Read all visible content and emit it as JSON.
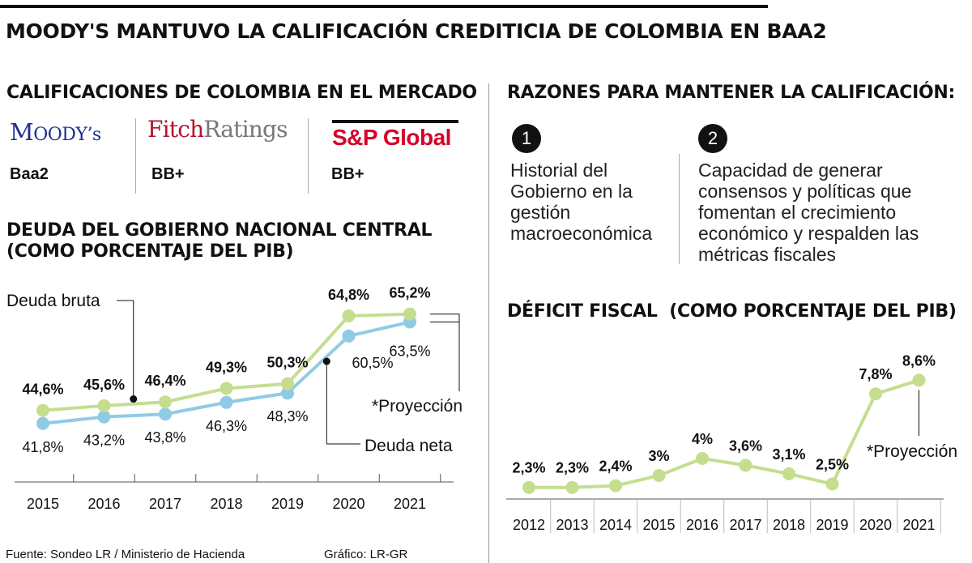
{
  "headline": "MOODY'S MANTUVO LA CALIFICACIÓN CREDITICIA DE COLOMBIA EN BAA2",
  "ratings": {
    "title": "CALIFICACIONES DE COLOMBIA EN EL MERCADO",
    "agencies": [
      {
        "logo_name": "Moody's",
        "logo_text": "Moody's",
        "rating": "Baa2",
        "color": "#1b2f8e"
      },
      {
        "logo_name": "FitchRatings",
        "logo_part1": "Fitch",
        "logo_part2": "Ratings",
        "rating": "BB+",
        "color": "#b3122d"
      },
      {
        "logo_name": "S&P Global",
        "logo_text": "S&P Global",
        "rating": "BB+",
        "color": "#d6002a"
      }
    ]
  },
  "reasons": {
    "title": "RAZONES PARA MANTENER LA CALIFICACIÓN:",
    "items": [
      {
        "number": "1",
        "text": "Historial del\nGobierno en la\ngestión\nmacroeconómica"
      },
      {
        "number": "2",
        "text": "Capacidad de generar\nconsensos y políticas que\nfomentan el crecimiento\neconómico y respalden las\nmétricas fiscales"
      }
    ]
  },
  "colors": {
    "bruta": "#c5dd8f",
    "neta": "#8fcbe6",
    "text": "#111111",
    "axis": "#555555"
  },
  "chart_data": [
    {
      "type": "line",
      "title": "DEUDA DEL GOBIERNO NACIONAL CENTRAL",
      "subtitle": "(COMO PORCENTAJE DEL PIB)",
      "x": [
        "2015",
        "2016",
        "2017",
        "2018",
        "2019",
        "2020",
        "2021"
      ],
      "series": [
        {
          "name": "Deuda bruta",
          "values": [
            44.6,
            45.6,
            46.4,
            49.3,
            50.3,
            64.8,
            65.2
          ],
          "labels": [
            "44,6%",
            "45,6%",
            "46,4%",
            "49,3%",
            "50,3%",
            "64,8%",
            "65,2%"
          ]
        },
        {
          "name": "Deuda neta",
          "values": [
            41.8,
            43.2,
            43.8,
            46.3,
            48.3,
            60.5,
            63.5
          ],
          "labels": [
            "41,8%",
            "43,2%",
            "43,8%",
            "46,3%",
            "48,3%",
            "60,5%",
            "63,5%"
          ]
        }
      ],
      "annotation": "*Proyección",
      "ylim": [
        35,
        70
      ],
      "grid": false,
      "legend": "inline labels"
    },
    {
      "type": "line",
      "title": "DÉFICIT FISCAL",
      "subtitle": "(COMO PORCENTAJE DEL PIB)",
      "x": [
        "2012",
        "2013",
        "2014",
        "2015",
        "2016",
        "2017",
        "2018",
        "2019",
        "2020",
        "2021"
      ],
      "series": [
        {
          "name": "Déficit fiscal",
          "values": [
            2.3,
            2.3,
            2.4,
            3.0,
            4.0,
            3.6,
            3.1,
            2.5,
            7.8,
            8.6
          ],
          "labels": [
            "2,3%",
            "2,3%",
            "2,4%",
            "3%",
            "4%",
            "3,6%",
            "3,1%",
            "2,5%",
            "7,8%",
            "8,6%"
          ]
        }
      ],
      "annotation": "*Proyección",
      "ylim": [
        2,
        10
      ],
      "grid": false,
      "legend": "none"
    }
  ],
  "footer": {
    "source": "Fuente: Sondeo LR / Ministerio de Hacienda",
    "graphic": "Gráfico: LR-GR"
  }
}
